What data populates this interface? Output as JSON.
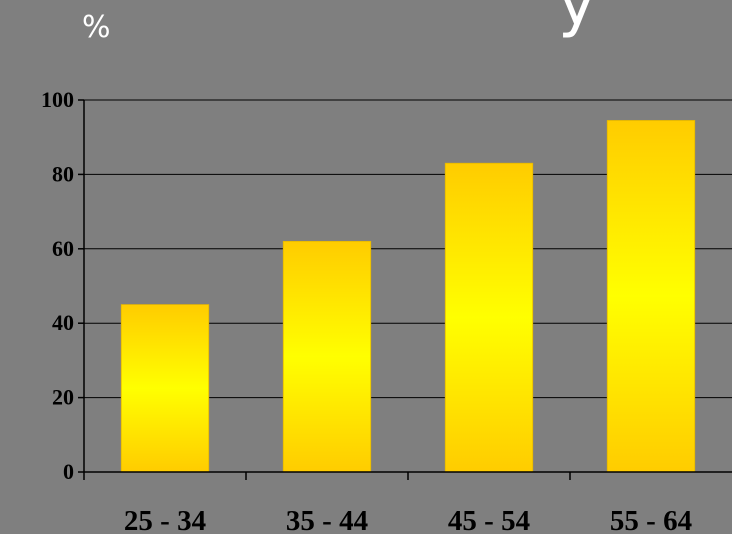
{
  "chart_data": {
    "type": "bar",
    "title": "",
    "xlabel": "",
    "ylabel": "%",
    "categories": [
      "25 - 34",
      "35 - 44",
      "45 - 54",
      "55 - 64"
    ],
    "values": [
      45,
      62,
      83,
      94.5
    ],
    "ylim": [
      0,
      100
    ],
    "yticks": [
      0,
      20,
      40,
      60,
      80,
      100
    ],
    "grid": true,
    "legend": "none",
    "colors": {
      "background": "#7f7f7f",
      "bar_light": "#ffff00",
      "bar_dark": "#ffcc00",
      "gridline": "#000000",
      "text": "#000000"
    }
  }
}
